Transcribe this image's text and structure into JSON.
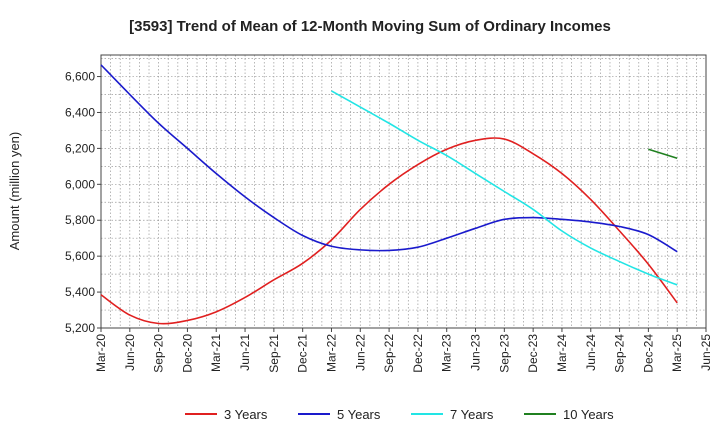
{
  "chart_data": {
    "type": "line",
    "title": "[3593]  Trend of Mean of 12-Month Moving Sum of Ordinary Incomes",
    "xlabel": "",
    "ylabel": "Amount (million yen)",
    "ylim": [
      5200,
      6720
    ],
    "yticks": [
      5200,
      5400,
      5600,
      5800,
      6000,
      6200,
      6400,
      6600
    ],
    "ytick_labels": [
      "5,200",
      "5,400",
      "5,600",
      "5,800",
      "6,000",
      "6,200",
      "6,400",
      "6,600"
    ],
    "x_categories": [
      "Mar-20",
      "Jun-20",
      "Sep-20",
      "Dec-20",
      "Mar-21",
      "Jun-21",
      "Sep-21",
      "Dec-21",
      "Mar-22",
      "Jun-22",
      "Sep-22",
      "Dec-22",
      "Mar-23",
      "Jun-23",
      "Sep-23",
      "Dec-23",
      "Mar-24",
      "Jun-24",
      "Sep-24",
      "Dec-24",
      "Mar-25",
      "Jun-25"
    ],
    "grid": true,
    "legend_position": "bottom",
    "series": [
      {
        "name": "3 Years",
        "color": "#e02020",
        "values": [
          5385,
          5272,
          5225,
          5242,
          5290,
          5370,
          5468,
          5560,
          5690,
          5860,
          6000,
          6110,
          6195,
          6245,
          6252,
          6170,
          6060,
          5915,
          5740,
          5555,
          5340,
          null
        ]
      },
      {
        "name": "5 Years",
        "color": "#1a1acc",
        "values": [
          6665,
          6500,
          6340,
          6200,
          6060,
          5930,
          5815,
          5715,
          5655,
          5635,
          5632,
          5650,
          5700,
          5755,
          5805,
          5815,
          5805,
          5790,
          5765,
          5720,
          5625,
          null
        ]
      },
      {
        "name": "7 Years",
        "color": "#22e5e5",
        "values": [
          null,
          null,
          null,
          null,
          null,
          null,
          null,
          null,
          6520,
          6430,
          6340,
          6245,
          6160,
          6060,
          5960,
          5860,
          5740,
          5645,
          5570,
          5500,
          5440,
          null
        ]
      },
      {
        "name": "10 Years",
        "color": "#208020",
        "values": [
          null,
          null,
          null,
          null,
          null,
          null,
          null,
          null,
          null,
          null,
          null,
          null,
          null,
          null,
          null,
          null,
          null,
          null,
          null,
          6195,
          6145,
          null
        ]
      }
    ]
  }
}
